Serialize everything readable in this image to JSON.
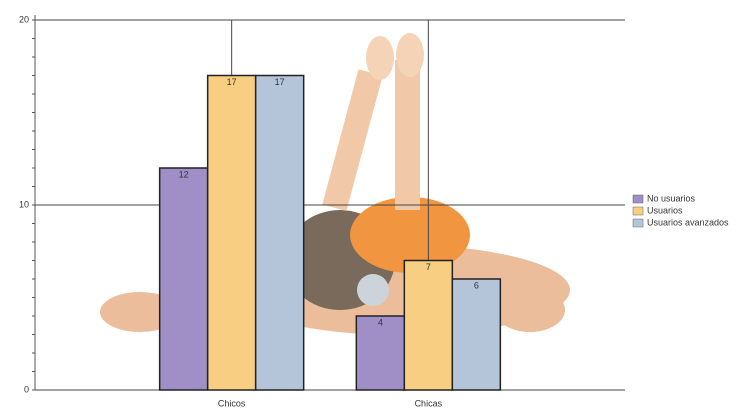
{
  "chart_data": {
    "type": "bar",
    "categories": [
      "Chicos",
      "Chicas"
    ],
    "series": [
      {
        "name": "No usuarios",
        "color": "#9f8fc6",
        "values": [
          12,
          4
        ]
      },
      {
        "name": "Usuarios",
        "color": "#f8cf82",
        "values": [
          17,
          7
        ]
      },
      {
        "name": "Usuarios avanzados",
        "color": "#b4c5da",
        "values": [
          17,
          6
        ]
      }
    ],
    "ylim": [
      0,
      20
    ],
    "yticks": [
      0,
      10,
      20
    ],
    "grid": true,
    "legend": "right"
  }
}
